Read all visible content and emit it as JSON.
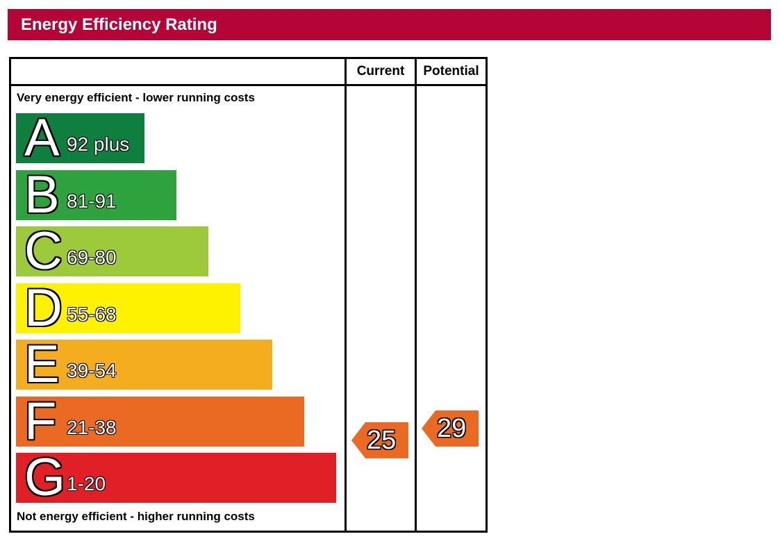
{
  "header": {
    "title": "Energy Efficiency Rating",
    "color": "#b50536"
  },
  "columns": {
    "current": "Current",
    "potential": "Potential"
  },
  "captions": {
    "top": "Very energy efficient - lower running costs",
    "bottom": "Not energy efficient - higher running costs"
  },
  "chart_data": {
    "type": "bar",
    "bands": [
      {
        "letter": "A",
        "range": "92 plus",
        "color": "#0f7f3f"
      },
      {
        "letter": "B",
        "range": "81-91",
        "color": "#2ea23d"
      },
      {
        "letter": "C",
        "range": "69-80",
        "color": "#9cca3b"
      },
      {
        "letter": "D",
        "range": "55-68",
        "color": "#fff200"
      },
      {
        "letter": "E",
        "range": "39-54",
        "color": "#f5ad20"
      },
      {
        "letter": "F",
        "range": "21-38",
        "color": "#eb6a23"
      },
      {
        "letter": "G",
        "range": "1-20",
        "color": "#e01f26"
      }
    ],
    "current": {
      "value": 25,
      "band": "F",
      "color": "#eb6a23"
    },
    "potential": {
      "value": 29,
      "band": "F",
      "color": "#eb6a23"
    }
  }
}
